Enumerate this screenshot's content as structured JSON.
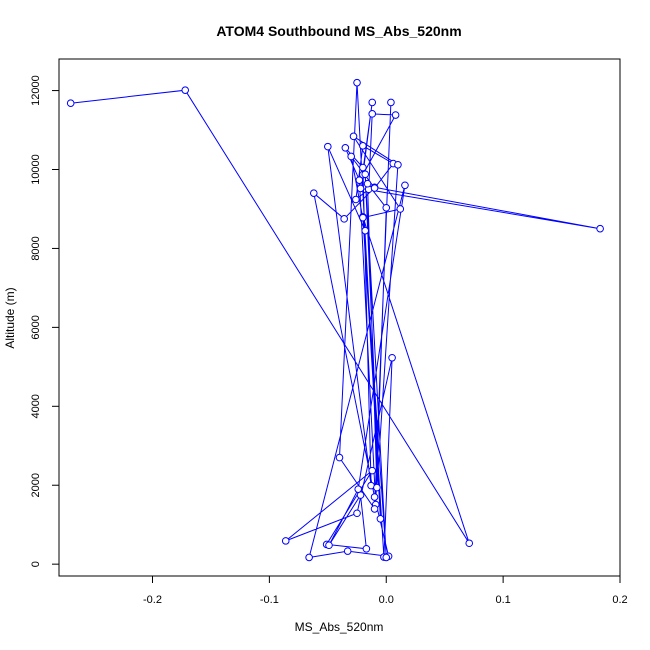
{
  "chart_data": {
    "type": "scatter",
    "title": "ATOM4 Southbound MS_Abs_520nm",
    "xlabel": "MS_Abs_520nm",
    "ylabel": "Altitude (m)",
    "xlim": [
      -0.28,
      0.2
    ],
    "ylim": [
      -300,
      12800
    ],
    "xticks": [
      "-0.2",
      "-0.1",
      "0.0",
      "0.1",
      "0.2"
    ],
    "yticks": [
      "0",
      "2000",
      "4000",
      "6000",
      "8000",
      "10000",
      "12000"
    ],
    "grid": false,
    "series_color": "#0000ff",
    "series": [
      {
        "x": [
          -0.27,
          -0.172,
          0.071,
          -0.02,
          -0.002,
          0.005,
          -0.025,
          -0.086,
          -0.012,
          -0.051,
          -0.017,
          -0.022,
          -0.049,
          -0.024,
          0.016,
          -0.066,
          -0.033,
          0.002,
          -0.01,
          -0.062,
          -0.036,
          -0.01,
          0.183,
          -0.022,
          -0.012,
          -0.02,
          0.008,
          -0.012,
          -0.015,
          -0.026,
          -0.02,
          0.006,
          -0.01,
          -0.03,
          -0.018,
          -0.05,
          -0.013,
          -0.02,
          -0.035,
          -0.023,
          -0.009,
          0.0,
          -0.016,
          -0.008,
          0.01,
          -0.028,
          0.012,
          -0.02,
          0.0,
          -0.018,
          -0.005,
          -0.025,
          -0.04,
          -0.01,
          0.004
        ],
        "y": [
          11680,
          12010,
          530,
          8800,
          180,
          5230,
          1290,
          590,
          2370,
          500,
          390,
          1750,
          480,
          1900,
          9600,
          170,
          330,
          200,
          1700,
          9400,
          8750,
          9550,
          8500,
          9520,
          11700,
          9870,
          11380,
          11410,
          9500,
          9240,
          10600,
          10150,
          9530,
          10330,
          8450,
          10580,
          1990,
          10050,
          10550,
          9730,
          1510,
          9030,
          9640,
          1940,
          10120,
          10840,
          9000,
          8780,
          170,
          9880,
          1150,
          12200,
          2700,
          1400,
          11700
        ]
      }
    ]
  }
}
